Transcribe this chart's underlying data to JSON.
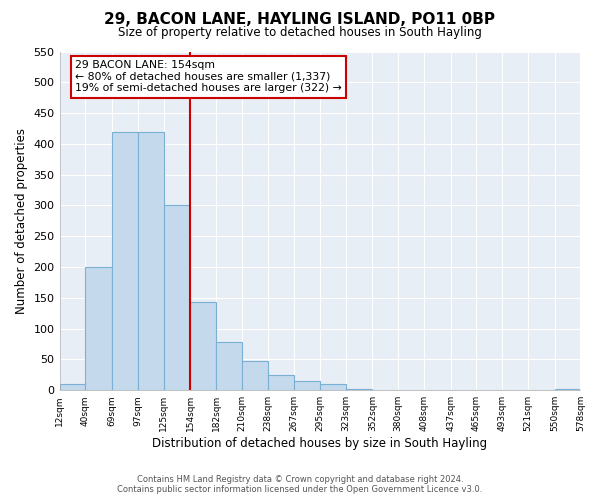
{
  "title": "29, BACON LANE, HAYLING ISLAND, PO11 0BP",
  "subtitle": "Size of property relative to detached houses in South Hayling",
  "xlabel": "Distribution of detached houses by size in South Hayling",
  "ylabel": "Number of detached properties",
  "bin_edges": [
    12,
    40,
    69,
    97,
    125,
    154,
    182,
    210,
    238,
    267,
    295,
    323,
    352,
    380,
    408,
    437,
    465,
    493,
    521,
    550,
    578
  ],
  "bin_counts": [
    10,
    200,
    420,
    420,
    300,
    143,
    78,
    48,
    25,
    15,
    10,
    2,
    0,
    0,
    0,
    0,
    0,
    0,
    0,
    2
  ],
  "bar_facecolor": "#c5d9ed",
  "bar_edgecolor": "#7ab0d4",
  "vline_x": 154,
  "vline_color": "#cc0000",
  "annotation_line1": "29 BACON LANE: 154sqm",
  "annotation_line2": "← 80% of detached houses are smaller (1,337)",
  "annotation_line3": "19% of semi-detached houses are larger (322) →",
  "annotation_box_edgecolor": "#cc0000",
  "ylim": [
    0,
    550
  ],
  "yticks": [
    0,
    50,
    100,
    150,
    200,
    250,
    300,
    350,
    400,
    450,
    500,
    550
  ],
  "tick_labels": [
    "12sqm",
    "40sqm",
    "69sqm",
    "97sqm",
    "125sqm",
    "154sqm",
    "182sqm",
    "210sqm",
    "238sqm",
    "267sqm",
    "295sqm",
    "323sqm",
    "352sqm",
    "380sqm",
    "408sqm",
    "437sqm",
    "465sqm",
    "493sqm",
    "521sqm",
    "550sqm",
    "578sqm"
  ],
  "footer1": "Contains HM Land Registry data © Crown copyright and database right 2024.",
  "footer2": "Contains public sector information licensed under the Open Government Licence v3.0.",
  "background_color": "#ffffff",
  "plot_bg_color": "#e8eef5",
  "grid_color": "#ffffff"
}
